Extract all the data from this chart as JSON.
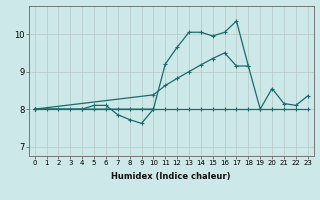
{
  "xlabel": "Humidex (Indice chaleur)",
  "bg_color": "#cce8e8",
  "grid_color": "#b8c8c8",
  "line_color": "#1a6b6b",
  "xlim": [
    -0.5,
    23.5
  ],
  "ylim": [
    6.75,
    10.75
  ],
  "yticks": [
    7,
    8,
    9,
    10
  ],
  "xticks": [
    0,
    1,
    2,
    3,
    4,
    5,
    6,
    7,
    8,
    9,
    10,
    11,
    12,
    13,
    14,
    15,
    16,
    17,
    18,
    19,
    20,
    21,
    22,
    23
  ],
  "line1_x": [
    0,
    1,
    2,
    3,
    4,
    5,
    6,
    7,
    8,
    9,
    10,
    11,
    12,
    13,
    14,
    15,
    16,
    17,
    18,
    19,
    20,
    21,
    22,
    23
  ],
  "line1_y": [
    8.0,
    8.0,
    8.0,
    8.0,
    8.0,
    8.0,
    8.0,
    8.0,
    8.0,
    8.0,
    8.0,
    8.0,
    8.0,
    8.0,
    8.0,
    8.0,
    8.0,
    8.0,
    8.0,
    8.0,
    8.0,
    8.0,
    8.0,
    8.0
  ],
  "line2_x": [
    0,
    4,
    5,
    6,
    7,
    8,
    9,
    10
  ],
  "line2_y": [
    8.0,
    8.0,
    8.1,
    8.1,
    7.85,
    7.72,
    7.62,
    8.0
  ],
  "line3_x": [
    0,
    10,
    11,
    12,
    13,
    14,
    15,
    16,
    17,
    18
  ],
  "line3_y": [
    8.0,
    8.38,
    8.63,
    8.82,
    9.0,
    9.18,
    9.35,
    9.5,
    9.15,
    9.15
  ],
  "line4_x": [
    0,
    10,
    11,
    12,
    13,
    14,
    15,
    16,
    17,
    18,
    19,
    20,
    21,
    22,
    23
  ],
  "line4_y": [
    8.0,
    8.0,
    9.2,
    9.65,
    10.05,
    10.05,
    9.95,
    10.05,
    10.35,
    9.15,
    8.0,
    8.55,
    8.15,
    8.1,
    8.35
  ]
}
